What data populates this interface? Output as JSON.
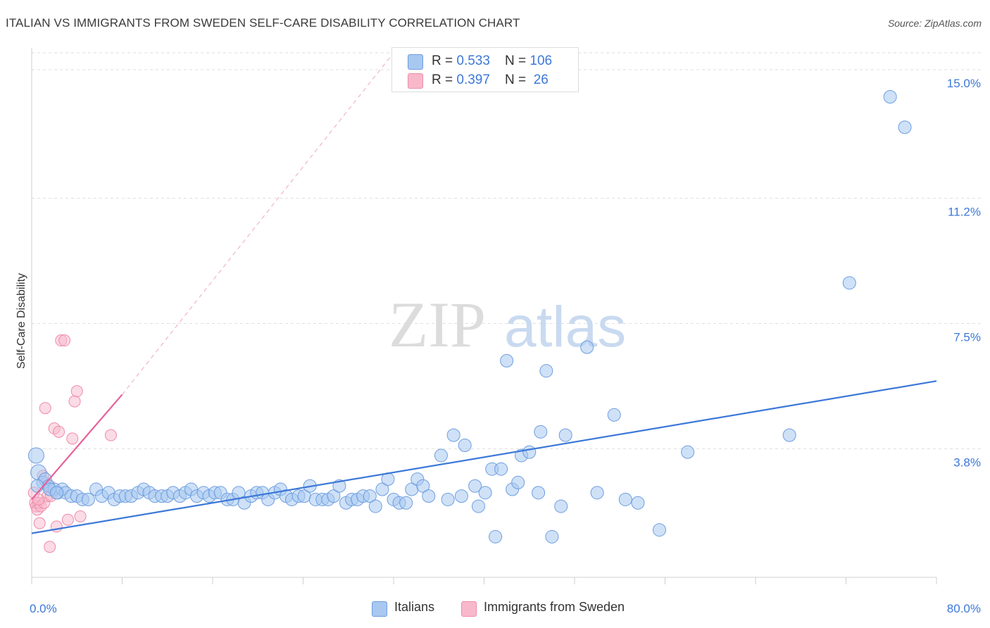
{
  "title": "ITALIAN VS IMMIGRANTS FROM SWEDEN SELF-CARE DISABILITY CORRELATION CHART",
  "source": "Source: ZipAtlas.com",
  "watermark": {
    "zip": "ZIP",
    "atlas": "atlas"
  },
  "legend": {
    "rows": [
      {
        "r_label": "R = ",
        "r_value": "0.533",
        "n_label": "N = ",
        "n_value": "106",
        "color": "#a8c8f0"
      },
      {
        "r_label": "R = ",
        "r_value": "0.397",
        "n_label": "N = ",
        "n_value": " 26",
        "color": "#f8b8cb"
      }
    ]
  },
  "bottom_legend": [
    {
      "label": "Italians",
      "color": "#a8c8f0"
    },
    {
      "label": "Immigrants from Sweden",
      "color": "#f8b8cb"
    }
  ],
  "chart_data": {
    "type": "scatter",
    "ylabel": "Self-Care Disability",
    "xlim": [
      0,
      80
    ],
    "ylim": [
      0,
      15.5
    ],
    "x_tick_labels": [
      "0.0%",
      "80.0%"
    ],
    "y_ticks": [
      {
        "value": 3.8,
        "label": "3.8%"
      },
      {
        "value": 7.5,
        "label": "7.5%"
      },
      {
        "value": 11.2,
        "label": "11.2%"
      },
      {
        "value": 15.0,
        "label": "15.0%"
      }
    ],
    "grid": "dashed horizontal",
    "colors": {
      "italians": "#3c78d8",
      "italians_fill": "#a8c8f0",
      "sweden": "#e8609a",
      "sweden_fill": "#f8b8cb"
    },
    "series": [
      {
        "name": "Italians",
        "trend": {
          "x": [
            0,
            80
          ],
          "y": [
            1.3,
            5.8
          ]
        },
        "points": [
          [
            0.4,
            3.6
          ],
          [
            0.6,
            3.1
          ],
          [
            1.0,
            2.8
          ],
          [
            1.2,
            2.9
          ],
          [
            1.5,
            2.7
          ],
          [
            2.0,
            2.6
          ],
          [
            2.3,
            2.5
          ],
          [
            2.7,
            2.6
          ],
          [
            3.0,
            2.5
          ],
          [
            3.5,
            2.4
          ],
          [
            4.0,
            2.4
          ],
          [
            4.5,
            2.3
          ],
          [
            5.0,
            2.3
          ],
          [
            5.7,
            2.6
          ],
          [
            6.2,
            2.4
          ],
          [
            6.8,
            2.5
          ],
          [
            7.3,
            2.3
          ],
          [
            7.8,
            2.4
          ],
          [
            8.3,
            2.4
          ],
          [
            8.8,
            2.4
          ],
          [
            9.4,
            2.5
          ],
          [
            9.9,
            2.6
          ],
          [
            10.4,
            2.5
          ],
          [
            10.9,
            2.4
          ],
          [
            11.5,
            2.4
          ],
          [
            12.0,
            2.4
          ],
          [
            12.5,
            2.5
          ],
          [
            13.1,
            2.4
          ],
          [
            13.6,
            2.5
          ],
          [
            14.1,
            2.6
          ],
          [
            14.6,
            2.4
          ],
          [
            15.2,
            2.5
          ],
          [
            15.7,
            2.4
          ],
          [
            16.2,
            2.5
          ],
          [
            16.7,
            2.5
          ],
          [
            17.3,
            2.3
          ],
          [
            17.8,
            2.3
          ],
          [
            18.3,
            2.5
          ],
          [
            18.8,
            2.2
          ],
          [
            19.4,
            2.4
          ],
          [
            19.9,
            2.5
          ],
          [
            20.4,
            2.5
          ],
          [
            20.9,
            2.3
          ],
          [
            21.5,
            2.5
          ],
          [
            22.0,
            2.6
          ],
          [
            22.5,
            2.4
          ],
          [
            23.0,
            2.3
          ],
          [
            23.6,
            2.4
          ],
          [
            24.1,
            2.4
          ],
          [
            24.6,
            2.7
          ],
          [
            25.1,
            2.3
          ],
          [
            25.7,
            2.3
          ],
          [
            26.2,
            2.3
          ],
          [
            26.7,
            2.4
          ],
          [
            27.2,
            2.7
          ],
          [
            27.8,
            2.2
          ],
          [
            28.3,
            2.3
          ],
          [
            28.8,
            2.3
          ],
          [
            29.3,
            2.4
          ],
          [
            29.9,
            2.4
          ],
          [
            30.4,
            2.1
          ],
          [
            31.0,
            2.6
          ],
          [
            31.5,
            2.9
          ],
          [
            32.0,
            2.3
          ],
          [
            32.5,
            2.2
          ],
          [
            33.1,
            2.2
          ],
          [
            33.6,
            2.6
          ],
          [
            34.1,
            2.9
          ],
          [
            34.6,
            2.7
          ],
          [
            35.1,
            2.4
          ],
          [
            36.2,
            3.6
          ],
          [
            36.8,
            2.3
          ],
          [
            37.3,
            4.2
          ],
          [
            38.0,
            2.4
          ],
          [
            38.3,
            3.9
          ],
          [
            39.2,
            2.7
          ],
          [
            39.5,
            2.1
          ],
          [
            40.1,
            2.5
          ],
          [
            40.7,
            3.2
          ],
          [
            41.0,
            1.2
          ],
          [
            41.5,
            3.2
          ],
          [
            42.0,
            6.4
          ],
          [
            42.5,
            2.6
          ],
          [
            43.0,
            2.8
          ],
          [
            43.3,
            3.6
          ],
          [
            44.0,
            3.7
          ],
          [
            44.8,
            2.5
          ],
          [
            45.0,
            4.3
          ],
          [
            45.5,
            6.1
          ],
          [
            46.0,
            1.2
          ],
          [
            46.8,
            2.1
          ],
          [
            47.2,
            4.2
          ],
          [
            49.1,
            6.8
          ],
          [
            50.0,
            2.5
          ],
          [
            51.5,
            4.8
          ],
          [
            52.5,
            2.3
          ],
          [
            53.6,
            2.2
          ],
          [
            55.5,
            1.4
          ],
          [
            58.0,
            3.7
          ],
          [
            67.0,
            4.2
          ],
          [
            72.3,
            8.7
          ],
          [
            75.9,
            14.2
          ],
          [
            77.2,
            13.3
          ],
          [
            0.5,
            2.7
          ],
          [
            1.6,
            2.6
          ],
          [
            2.2,
            2.5
          ]
        ]
      },
      {
        "name": "Immigrants from Sweden",
        "trend": {
          "x": [
            0,
            8
          ],
          "y": [
            2.3,
            5.4
          ]
        },
        "trend_extension": {
          "x": [
            8,
            32
          ],
          "y": [
            5.4,
            15.5
          ]
        },
        "points": [
          [
            0.2,
            2.5
          ],
          [
            0.3,
            2.2
          ],
          [
            0.4,
            2.1
          ],
          [
            0.5,
            2.0
          ],
          [
            0.6,
            2.2
          ],
          [
            0.7,
            1.6
          ],
          [
            0.8,
            2.1
          ],
          [
            1.0,
            3.0
          ],
          [
            1.1,
            2.2
          ],
          [
            1.2,
            5.0
          ],
          [
            1.4,
            2.4
          ],
          [
            1.5,
            2.7
          ],
          [
            1.6,
            0.9
          ],
          [
            1.7,
            2.4
          ],
          [
            2.0,
            4.4
          ],
          [
            2.2,
            1.5
          ],
          [
            2.4,
            4.3
          ],
          [
            2.6,
            7.0
          ],
          [
            2.9,
            7.0
          ],
          [
            3.2,
            1.7
          ],
          [
            3.6,
            4.1
          ],
          [
            3.8,
            5.2
          ],
          [
            4.0,
            5.5
          ],
          [
            4.3,
            1.8
          ],
          [
            7.0,
            4.2
          ],
          [
            0.6,
            2.3
          ]
        ]
      }
    ]
  }
}
